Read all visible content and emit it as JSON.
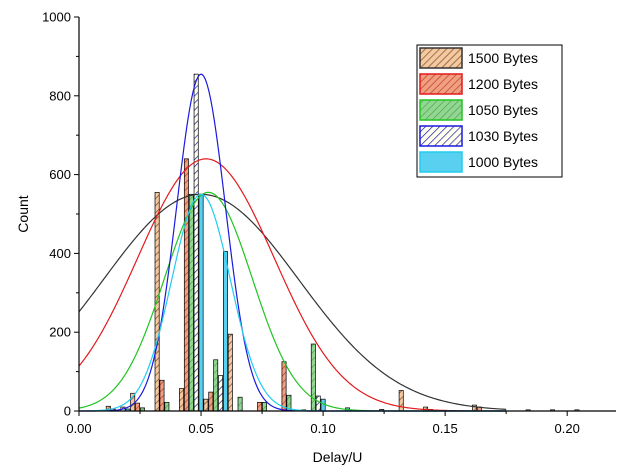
{
  "chart_data": {
    "type": "bar",
    "title": "",
    "xlabel": "Delay/U",
    "ylabel": "Count",
    "xlim": [
      0.0,
      0.22
    ],
    "ylim": [
      0,
      1000
    ],
    "x_ticks": [
      0.0,
      0.05,
      0.1,
      0.15,
      0.2
    ],
    "x_tick_labels": [
      "0.00",
      "0.05",
      "0.10",
      "0.15",
      "0.20"
    ],
    "y_ticks": [
      0,
      200,
      400,
      600,
      800,
      1000
    ],
    "y_tick_labels": [
      "0",
      "200",
      "400",
      "600",
      "800",
      "1000"
    ],
    "grid": false,
    "legend_position": "top-right",
    "series": [
      {
        "name": "1500 Bytes",
        "bar_fill": "#f5c9a0",
        "hatch_color": "#7a4a2a",
        "curve_color": "#333333",
        "fit": {
          "amplitude": 550,
          "mean": 0.05,
          "sigma": 0.04
        },
        "bars": [
          {
            "x": 0.012,
            "y": 12
          },
          {
            "x": 0.022,
            "y": 45
          },
          {
            "x": 0.032,
            "y": 555
          },
          {
            "x": 0.042,
            "y": 57
          },
          {
            "x": 0.052,
            "y": 30
          },
          {
            "x": 0.062,
            "y": 195
          },
          {
            "x": 0.092,
            "y": 3
          },
          {
            "x": 0.132,
            "y": 52
          },
          {
            "x": 0.142,
            "y": 10
          },
          {
            "x": 0.162,
            "y": 15
          }
        ]
      },
      {
        "name": "1200 Bytes",
        "bar_fill": "#f0a080",
        "hatch_color": "#c0392b",
        "curve_color": "#e31a1c",
        "fit": {
          "amplitude": 640,
          "mean": 0.052,
          "sigma": 0.028
        },
        "bars": [
          {
            "x": 0.014,
            "y": 5
          },
          {
            "x": 0.024,
            "y": 20
          },
          {
            "x": 0.034,
            "y": 78
          },
          {
            "x": 0.044,
            "y": 640
          },
          {
            "x": 0.054,
            "y": 48
          },
          {
            "x": 0.074,
            "y": 22
          },
          {
            "x": 0.084,
            "y": 125
          },
          {
            "x": 0.124,
            "y": 4
          },
          {
            "x": 0.144,
            "y": 4
          },
          {
            "x": 0.164,
            "y": 10
          },
          {
            "x": 0.184,
            "y": 3
          },
          {
            "x": 0.194,
            "y": 3
          },
          {
            "x": 0.204,
            "y": 3
          }
        ]
      },
      {
        "name": "1050 Bytes",
        "bar_fill": "#90d890",
        "hatch_color": "#5a9a5a",
        "curve_color": "#22c422",
        "fit": {
          "amplitude": 555,
          "mean": 0.053,
          "sigma": 0.018
        },
        "bars": [
          {
            "x": 0.026,
            "y": 8
          },
          {
            "x": 0.036,
            "y": 22
          },
          {
            "x": 0.046,
            "y": 550
          },
          {
            "x": 0.056,
            "y": 130
          },
          {
            "x": 0.066,
            "y": 35
          },
          {
            "x": 0.076,
            "y": 22
          },
          {
            "x": 0.086,
            "y": 40
          },
          {
            "x": 0.096,
            "y": 170
          }
        ]
      },
      {
        "name": "1030 Bytes",
        "bar_fill": "#fffff0",
        "hatch_color": "#1a1a9a",
        "curve_color": "#1a1adf",
        "fit": {
          "amplitude": 855,
          "mean": 0.05,
          "sigma": 0.01
        },
        "bars": [
          {
            "x": 0.018,
            "y": 10
          },
          {
            "x": 0.048,
            "y": 855
          },
          {
            "x": 0.058,
            "y": 90
          },
          {
            "x": 0.098,
            "y": 38
          }
        ]
      },
      {
        "name": "1000 Bytes",
        "bar_fill": "#5ad0f0",
        "hatch_color": "#5ad0f0",
        "curve_color": "#22ccee",
        "fit": {
          "amplitude": 550,
          "mean": 0.05,
          "sigma": 0.012
        },
        "bars": [
          {
            "x": 0.02,
            "y": 5
          },
          {
            "x": 0.05,
            "y": 550
          },
          {
            "x": 0.06,
            "y": 405
          },
          {
            "x": 0.1,
            "y": 30
          },
          {
            "x": 0.11,
            "y": 8
          }
        ]
      }
    ]
  }
}
